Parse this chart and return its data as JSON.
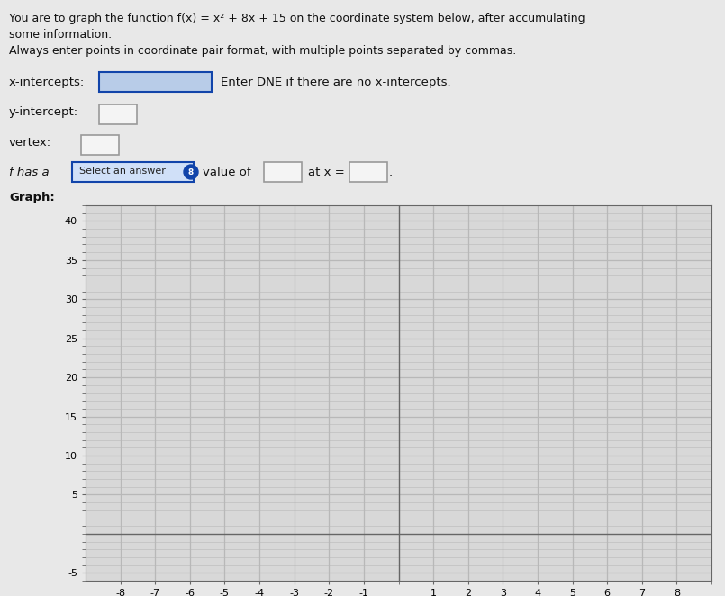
{
  "title_line1": "You are to graph the function f(x) = x² + 8x + 15 on the coordinate system below, after accumulating",
  "title_line2": "some information.",
  "title_line3": "Always enter points in coordinate pair format, with multiple points separated by commas.",
  "label_x_intercepts": "x-intercepts:",
  "label_x_hint": "Enter DNE if there are no x-intercepts.",
  "label_y_intercept": "y-intercept:",
  "label_vertex": "vertex:",
  "label_f_has": "f has a",
  "label_select": "Select an answer",
  "label_value_of": "value of",
  "label_at_x": "at x =",
  "label_dot": ".",
  "label_graph": "Graph:",
  "bg_color": "#e8e8e8",
  "graph_bg": "#d8d8d8",
  "grid_color": "#b8b8b8",
  "axis_color": "#666666",
  "box_fill_x": "#b8cce8",
  "box_fill_white": "#f4f4f4",
  "box_border": "#999999",
  "select_btn_color": "#1144aa",
  "select_btn_bg": "#d0e0f8",
  "xlim": [
    -9,
    9
  ],
  "ylim": [
    -6,
    42
  ],
  "xticks": [
    -8,
    -7,
    -6,
    -5,
    -4,
    -3,
    -2,
    -1,
    1,
    2,
    3,
    4,
    5,
    6,
    7,
    8
  ],
  "yticks": [
    -5,
    5,
    10,
    15,
    20,
    25,
    30,
    35,
    40
  ]
}
